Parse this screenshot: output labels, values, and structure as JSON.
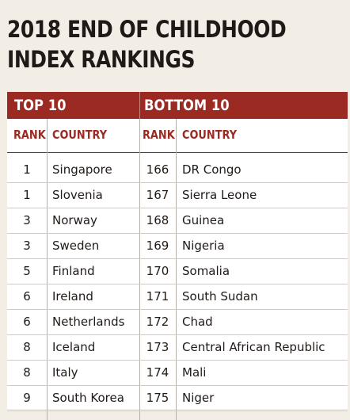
{
  "title": {
    "line1": "2018 END OF CHILDHOOD",
    "line2": "INDEX RANKINGS"
  },
  "colors": {
    "band": "#9b2a22",
    "header_text": "#9b2a22",
    "background": "#f2ede5"
  },
  "groups": {
    "top": "TOP 10",
    "bottom": "BOTTOM 10"
  },
  "columns": {
    "rank": "RANK",
    "country": "COUNTRY"
  },
  "rows": [
    {
      "top_rank": "1",
      "top_country": "Singapore",
      "bottom_rank": "166",
      "bottom_country": "DR Congo"
    },
    {
      "top_rank": "1",
      "top_country": "Slovenia",
      "bottom_rank": "167",
      "bottom_country": "Sierra Leone"
    },
    {
      "top_rank": "3",
      "top_country": "Norway",
      "bottom_rank": "168",
      "bottom_country": "Guinea"
    },
    {
      "top_rank": "3",
      "top_country": "Sweden",
      "bottom_rank": "169",
      "bottom_country": "Nigeria"
    },
    {
      "top_rank": "5",
      "top_country": "Finland",
      "bottom_rank": "170",
      "bottom_country": "Somalia"
    },
    {
      "top_rank": "6",
      "top_country": "Ireland",
      "bottom_rank": "171",
      "bottom_country": "South Sudan"
    },
    {
      "top_rank": "6",
      "top_country": "Netherlands",
      "bottom_rank": "172",
      "bottom_country": "Chad"
    },
    {
      "top_rank": "8",
      "top_country": "Iceland",
      "bottom_rank": "173",
      "bottom_country": "Central African Republic"
    },
    {
      "top_rank": "8",
      "top_country": "Italy",
      "bottom_rank": "174",
      "bottom_country": "Mali"
    },
    {
      "top_rank": "9",
      "top_country": "South Korea",
      "bottom_rank": "175",
      "bottom_country": "Niger"
    }
  ]
}
